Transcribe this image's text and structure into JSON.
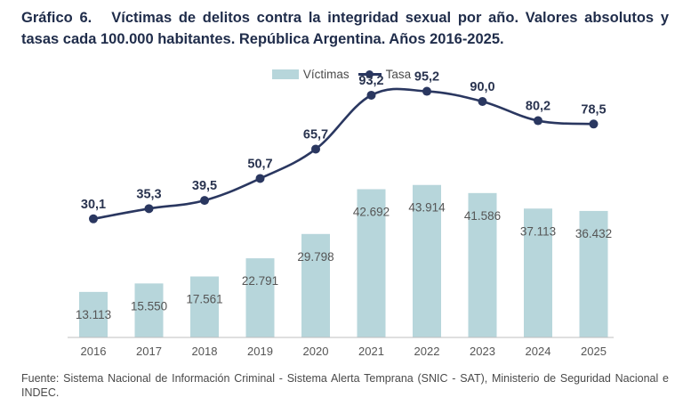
{
  "title": {
    "label": "Gráfico 6.",
    "text": "Víctimas de delitos contra la integridad sexual por año. Valores absolutos y tasas cada 100.000 habitantes. República Argentina. Años 2016-2025."
  },
  "legend": {
    "bars": "Víctimas",
    "line": "Tasa"
  },
  "colors": {
    "bar": "#b7d6db",
    "line": "#2a3760",
    "title": "#1f2c4a"
  },
  "chart_data": {
    "type": "bar",
    "categories": [
      "2016",
      "2017",
      "2018",
      "2019",
      "2020",
      "2021",
      "2022",
      "2023",
      "2024",
      "2025"
    ],
    "series": [
      {
        "name": "Víctimas",
        "type": "bar",
        "values": [
          13113,
          15550,
          17561,
          22791,
          29798,
          42692,
          43914,
          41586,
          37113,
          36432
        ],
        "labels": [
          "13.113",
          "15.550",
          "17.561",
          "22.791",
          "29.798",
          "42.692",
          "43.914",
          "41.586",
          "37.113",
          "36.432"
        ]
      },
      {
        "name": "Tasa",
        "type": "line",
        "values": [
          30.1,
          35.3,
          39.5,
          50.7,
          65.7,
          93.2,
          95.2,
          90.0,
          80.2,
          78.5
        ],
        "labels": [
          "30,1",
          "35,3",
          "39,5",
          "50,7",
          "65,7",
          "93,2",
          "95,2",
          "90,0",
          "80,2",
          "78,5"
        ]
      }
    ],
    "grid": false,
    "legend_position": "top-center"
  },
  "source": "Fuente: Sistema Nacional de Información Criminal - Sistema Alerta Temprana (SNIC - SAT), Ministerio de Seguridad Nacional e INDEC."
}
